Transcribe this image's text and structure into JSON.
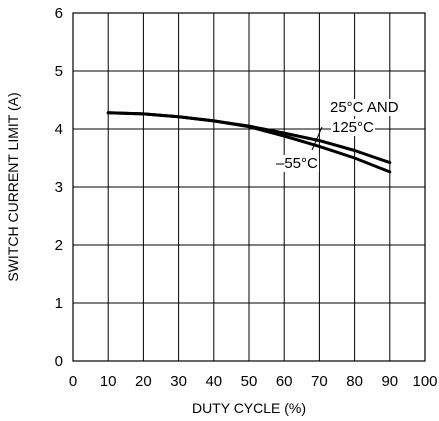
{
  "chart_data": {
    "type": "line",
    "title": "",
    "xlabel": "DUTY CYCLE (%)",
    "ylabel": "SWITCH CURRENT LIMIT (A)",
    "xlim": [
      0,
      100
    ],
    "ylim": [
      0,
      6
    ],
    "x_ticks": [
      0,
      10,
      20,
      30,
      40,
      50,
      60,
      70,
      80,
      90,
      100
    ],
    "y_ticks": [
      0,
      1,
      2,
      3,
      4,
      5,
      6
    ],
    "grid": true,
    "legend": "none",
    "series": [
      {
        "x": [
          10,
          20,
          30,
          40,
          50,
          60,
          70,
          80,
          90
        ],
        "y": [
          4.28,
          4.26,
          4.21,
          4.14,
          4.05,
          3.93,
          3.8,
          3.63,
          3.42
        ]
      },
      {
        "x": [
          10,
          20,
          30,
          40,
          50,
          60,
          70,
          80,
          90
        ],
        "y": [
          4.28,
          4.26,
          4.21,
          4.14,
          4.04,
          3.88,
          3.7,
          3.5,
          3.26
        ]
      }
    ],
    "annotations": [
      {
        "text": "25°C AND",
        "series": 0
      },
      {
        "text": "125°C",
        "series": 0
      },
      {
        "text": "–55°C",
        "series": 1
      }
    ]
  }
}
